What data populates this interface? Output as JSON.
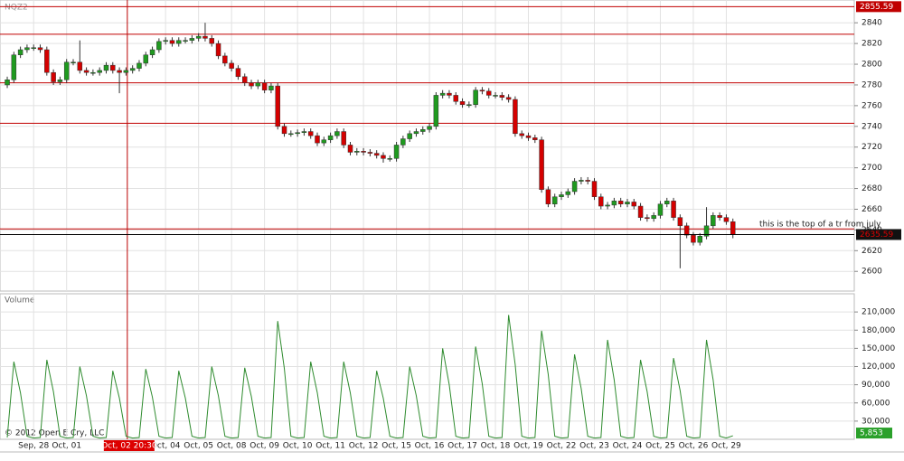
{
  "chart_data": [
    {
      "type": "candlestick",
      "title": "NQZ2",
      "xlim": [
        -1.1,
        128.4
      ],
      "xticks": [
        {
          "value": 4,
          "label": "Sep, 28"
        },
        {
          "value": 9,
          "label": "Oct, 01"
        },
        {
          "value": 24,
          "label": "Oct, 04"
        },
        {
          "value": 29,
          "label": "Oct, 05"
        },
        {
          "value": 34,
          "label": "Oct, 08"
        },
        {
          "value": 39,
          "label": "Oct, 09"
        },
        {
          "value": 44,
          "label": "Oct, 10"
        },
        {
          "value": 49,
          "label": "Oct, 11"
        },
        {
          "value": 54,
          "label": "Oct, 12"
        },
        {
          "value": 59,
          "label": "Oct, 15"
        },
        {
          "value": 64,
          "label": "Oct, 16"
        },
        {
          "value": 69,
          "label": "Oct, 17"
        },
        {
          "value": 74,
          "label": "Oct, 18"
        },
        {
          "value": 79,
          "label": "Oct, 19"
        },
        {
          "value": 84,
          "label": "Oct, 22"
        },
        {
          "value": 89,
          "label": "Oct, 23"
        },
        {
          "value": 94,
          "label": "Oct, 24"
        },
        {
          "value": 99,
          "label": "Oct, 25"
        },
        {
          "value": 104,
          "label": "Oct, 26"
        },
        {
          "value": 109,
          "label": "Oct, 29"
        }
      ],
      "ylim": [
        2581,
        2862
      ],
      "yticks": [
        2600,
        2620,
        2640,
        2660,
        2680,
        2700,
        2720,
        2740,
        2760,
        2780,
        2800,
        2820,
        2840
      ],
      "grid": true,
      "up_color": "#1f9a1f",
      "down_color": "#d40000",
      "level_color": "#c00000",
      "levels": [
        2855.59,
        2829,
        2782,
        2743,
        2641
      ],
      "annotation": "this is the top of a tr from july",
      "cursor": {
        "value": 18.2,
        "label": "Oct, 02 20:30"
      },
      "open": [
        2780,
        2785,
        2809,
        2814,
        2816,
        2816,
        2814,
        2792,
        2783,
        2785,
        2802,
        2802,
        2794,
        2792,
        2792,
        2794,
        2799,
        2794,
        2792,
        2794,
        2796,
        2801,
        2809,
        2814,
        2822,
        2823,
        2820,
        2823,
        2823,
        2825,
        2827,
        2825,
        2820,
        2808,
        2801,
        2796,
        2788,
        2782,
        2779,
        2782,
        2775,
        2779,
        2740,
        2733,
        2733,
        2734,
        2735,
        2731,
        2724,
        2727,
        2731,
        2735,
        2722,
        2715,
        2716,
        2715,
        2714,
        2712,
        2709,
        2709,
        2722,
        2728,
        2733,
        2735,
        2737,
        2740,
        2770,
        2772,
        2770,
        2764,
        2761,
        2761,
        2775,
        2774,
        2770,
        2770,
        2768,
        2766,
        2733,
        2731,
        2729,
        2727,
        2679,
        2665,
        2672,
        2674,
        2677,
        2687,
        2688,
        2687,
        2672,
        2663,
        2664,
        2668,
        2665,
        2667,
        2663,
        2652,
        2651,
        2654,
        2665,
        2668,
        2652,
        2644,
        2635,
        2628,
        2634,
        2644,
        2654,
        2652,
        2648
      ],
      "high": [
        2788,
        2812,
        2817,
        2819,
        2819,
        2819,
        2817,
        2795,
        2788,
        2805,
        2805,
        2823,
        2797,
        2795,
        2797,
        2802,
        2802,
        2797,
        2797,
        2799,
        2804,
        2812,
        2817,
        2825,
        2826,
        2826,
        2826,
        2826,
        2828,
        2830,
        2840,
        2828,
        2823,
        2811,
        2804,
        2799,
        2791,
        2785,
        2785,
        2785,
        2782,
        2782,
        2743,
        2736,
        2737,
        2738,
        2738,
        2734,
        2730,
        2734,
        2738,
        2738,
        2725,
        2719,
        2719,
        2718,
        2717,
        2715,
        2712,
        2725,
        2731,
        2736,
        2738,
        2740,
        2743,
        2773,
        2775,
        2775,
        2773,
        2767,
        2764,
        2778,
        2778,
        2777,
        2773,
        2773,
        2771,
        2769,
        2736,
        2734,
        2732,
        2730,
        2682,
        2675,
        2677,
        2680,
        2690,
        2691,
        2691,
        2690,
        2675,
        2667,
        2671,
        2671,
        2670,
        2670,
        2666,
        2655,
        2657,
        2668,
        2671,
        2671,
        2655,
        2647,
        2638,
        2637,
        2662,
        2657,
        2657,
        2655,
        2651
      ],
      "low": [
        2777,
        2782,
        2806,
        2811,
        2813,
        2811,
        2789,
        2780,
        2780,
        2782,
        2799,
        2791,
        2789,
        2789,
        2789,
        2791,
        2791,
        2772,
        2789,
        2791,
        2793,
        2798,
        2806,
        2811,
        2819,
        2817,
        2817,
        2820,
        2820,
        2822,
        2822,
        2817,
        2805,
        2798,
        2793,
        2785,
        2779,
        2776,
        2776,
        2772,
        2772,
        2737,
        2730,
        2730,
        2730,
        2731,
        2728,
        2721,
        2721,
        2724,
        2728,
        2719,
        2712,
        2712,
        2712,
        2711,
        2709,
        2705,
        2706,
        2706,
        2719,
        2725,
        2730,
        2732,
        2734,
        2737,
        2767,
        2767,
        2761,
        2758,
        2758,
        2758,
        2771,
        2767,
        2767,
        2765,
        2763,
        2730,
        2728,
        2726,
        2724,
        2676,
        2662,
        2662,
        2669,
        2671,
        2674,
        2684,
        2684,
        2669,
        2660,
        2660,
        2661,
        2662,
        2662,
        2660,
        2649,
        2648,
        2648,
        2651,
        2662,
        2649,
        2603,
        2632,
        2625,
        2625,
        2631,
        2641,
        2649,
        2645,
        2632
      ],
      "close": [
        2785,
        2809,
        2814,
        2816,
        2816,
        2814,
        2792,
        2783,
        2785,
        2802,
        2802,
        2794,
        2792,
        2792,
        2794,
        2799,
        2794,
        2792,
        2794,
        2796,
        2801,
        2809,
        2814,
        2822,
        2823,
        2820,
        2823,
        2823,
        2825,
        2827,
        2825,
        2820,
        2808,
        2801,
        2796,
        2788,
        2782,
        2779,
        2782,
        2775,
        2779,
        2740,
        2733,
        2733,
        2734,
        2735,
        2731,
        2724,
        2727,
        2731,
        2735,
        2722,
        2715,
        2716,
        2715,
        2714,
        2712,
        2709,
        2709,
        2722,
        2728,
        2733,
        2735,
        2737,
        2740,
        2770,
        2772,
        2770,
        2764,
        2761,
        2761,
        2775,
        2774,
        2770,
        2770,
        2768,
        2766,
        2733,
        2731,
        2729,
        2727,
        2679,
        2665,
        2672,
        2674,
        2677,
        2687,
        2688,
        2687,
        2672,
        2663,
        2664,
        2668,
        2665,
        2667,
        2663,
        2652,
        2651,
        2654,
        2665,
        2668,
        2652,
        2644,
        2635,
        2628,
        2634,
        2644,
        2654,
        2652,
        2648,
        2635.59
      ]
    },
    {
      "type": "line",
      "title": "Volume",
      "color": "#2e8b2e",
      "ylim": [
        0,
        240000
      ],
      "yticks": [
        {
          "value": 30000,
          "label": "30,000"
        },
        {
          "value": 60000,
          "label": "60,000"
        },
        {
          "value": 90000,
          "label": "90,000"
        },
        {
          "value": 120000,
          "label": "120,000"
        },
        {
          "value": 150000,
          "label": "150,000"
        },
        {
          "value": 180000,
          "label": "180,000"
        },
        {
          "value": 210000,
          "label": "210,000"
        }
      ],
      "current_label": "5,853",
      "copyright": "© 2012 Open E Cry, LLC",
      "values": [
        3000,
        128000,
        76800,
        5000,
        2000,
        3000,
        131000,
        78600,
        5000,
        2000,
        3000,
        120000,
        72000,
        5000,
        2000,
        3000,
        113000,
        67800,
        5000,
        2000,
        3000,
        116000,
        69600,
        5000,
        2000,
        3000,
        113000,
        67800,
        5000,
        2000,
        3000,
        120000,
        72000,
        5000,
        2000,
        3000,
        118000,
        70800,
        5000,
        2000,
        3000,
        195000,
        117000,
        5000,
        2000,
        3000,
        128000,
        76800,
        5000,
        2000,
        3000,
        128000,
        76800,
        5000,
        2000,
        3000,
        113000,
        67800,
        5000,
        2000,
        3000,
        120000,
        72000,
        5000,
        2000,
        3000,
        150000,
        90000,
        5000,
        2000,
        3000,
        153000,
        91800,
        5000,
        2000,
        3000,
        205000,
        123000,
        5000,
        2000,
        3000,
        179000,
        107400,
        5000,
        2000,
        3000,
        140000,
        84000,
        5000,
        2000,
        3000,
        164000,
        98400,
        5000,
        2000,
        3000,
        131000,
        78600,
        5000,
        2000,
        3000,
        134000,
        80400,
        5000,
        2000,
        3000,
        164000,
        98400,
        5000,
        2000,
        5853
      ]
    }
  ]
}
